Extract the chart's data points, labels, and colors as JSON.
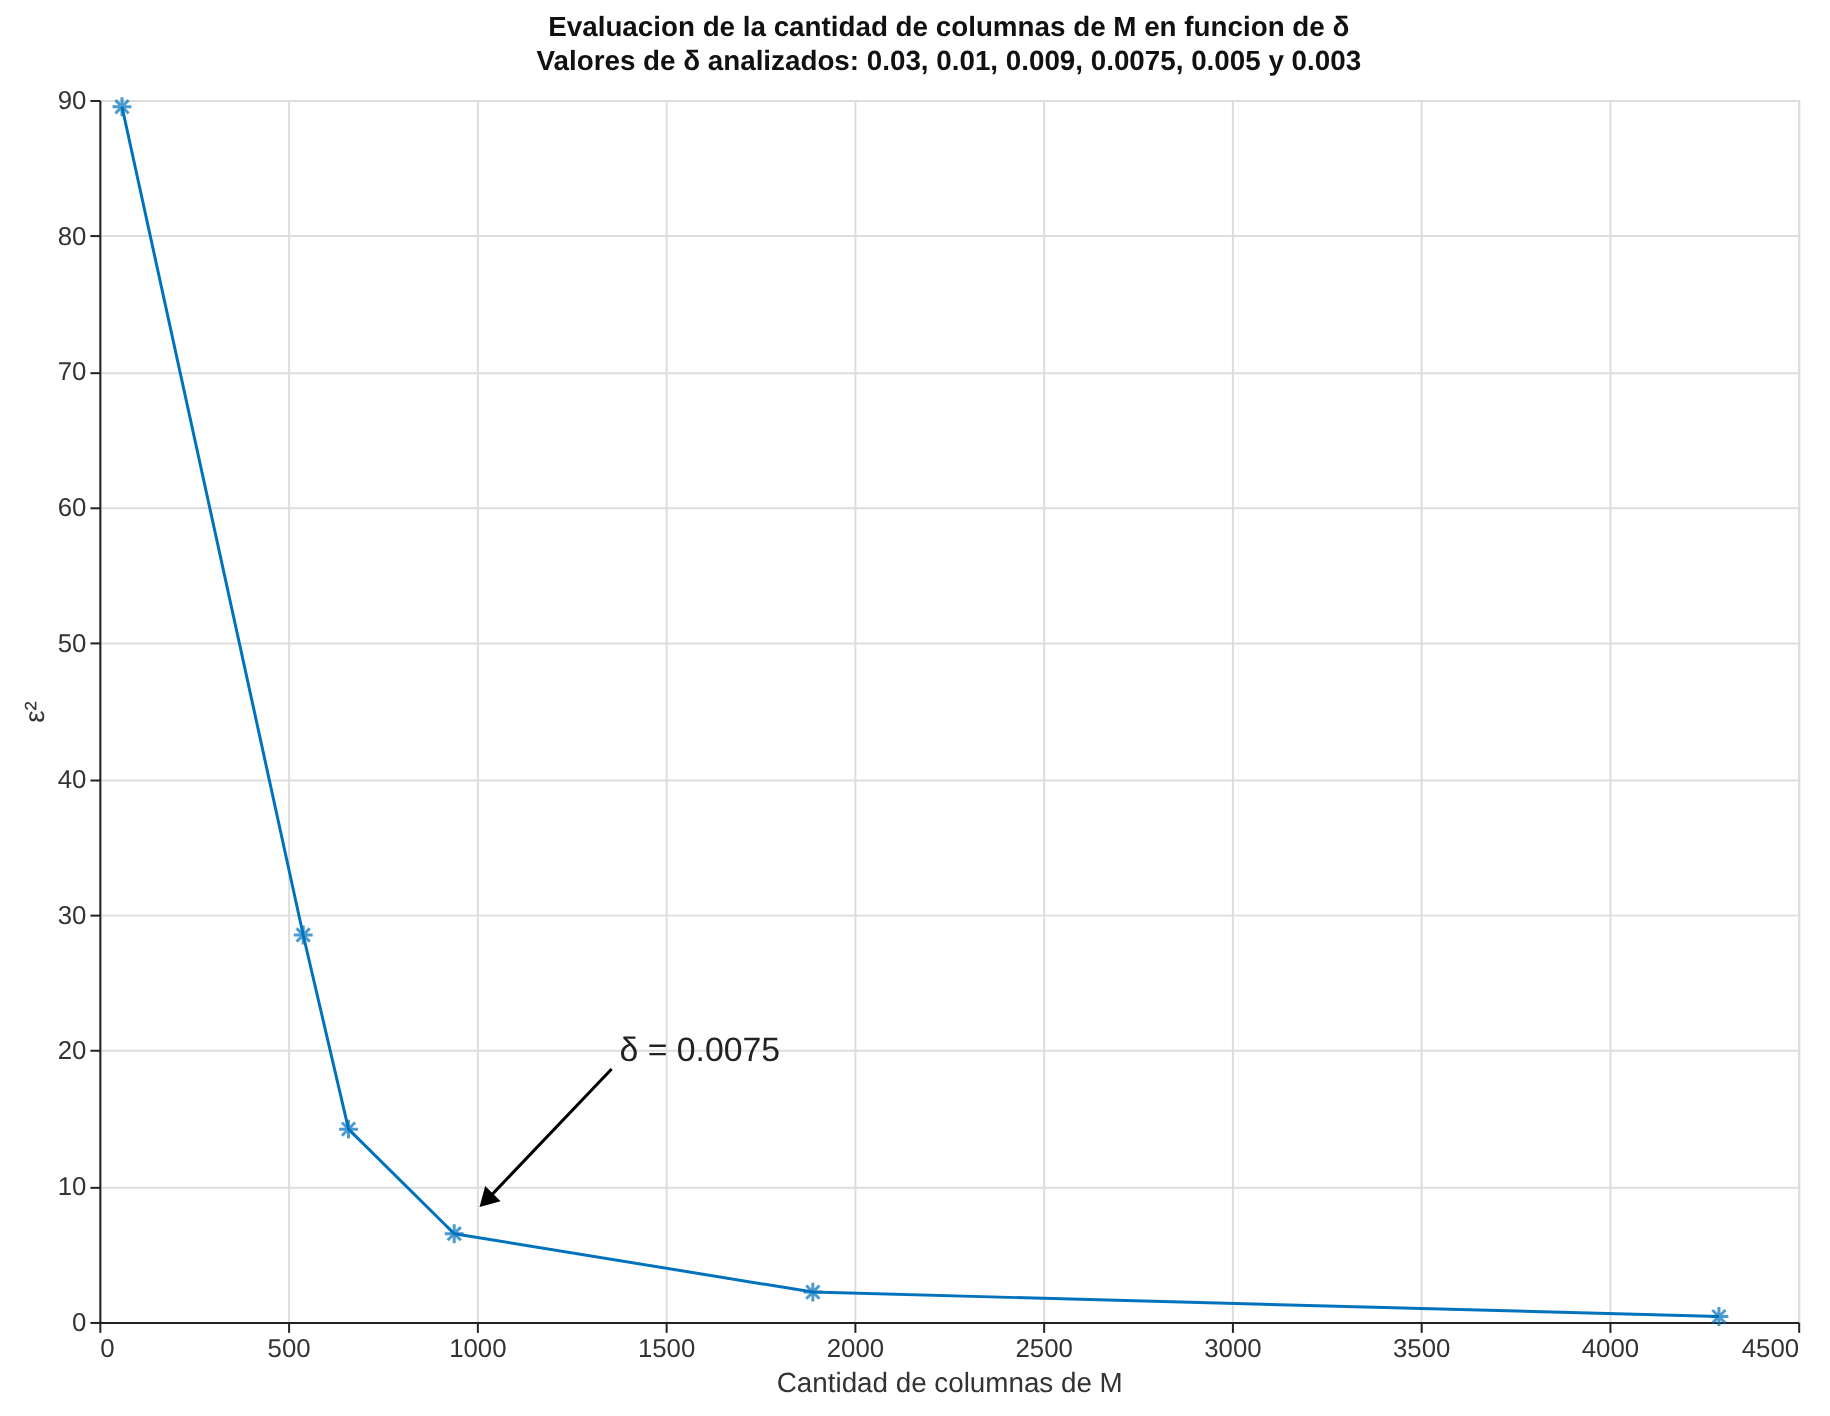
{
  "chart_data": {
    "type": "line",
    "title": "Evaluacion de la cantidad de columnas de M en funcion de δ",
    "subtitle": "Valores de δ analizados: 0.03, 0.01, 0.009, 0.0075, 0.005 y 0.003",
    "xlabel": "Cantidad de columnas de M",
    "ylabel": "ε²",
    "x": [
      60,
      540,
      660,
      940,
      1890,
      4290
    ],
    "series": [
      {
        "color": "#0072bd",
        "values": [
          89.5,
          28.5,
          14.2,
          6.5,
          2.2,
          0.4
        ]
      }
    ],
    "xlim": [
      0,
      4500
    ],
    "xticks": [
      0,
      500,
      1000,
      1500,
      2000,
      2500,
      3000,
      3500,
      4000,
      4500
    ],
    "ylim": [
      0,
      90
    ],
    "yticks": [
      0,
      10,
      20,
      30,
      40,
      50,
      60,
      70,
      80,
      90
    ],
    "grid": true,
    "marker": "cross",
    "line_style": "solid",
    "annotations": [
      "δ = 0.0075"
    ]
  }
}
